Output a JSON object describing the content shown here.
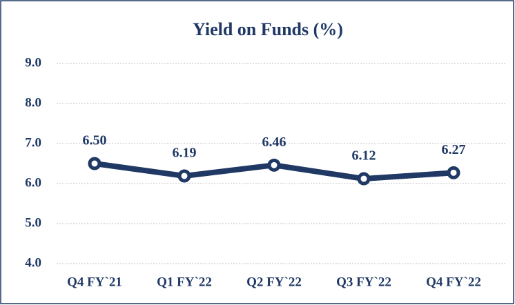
{
  "chart_data": {
    "type": "line",
    "title": "Yield on Funds (%)",
    "categories": [
      "Q4 FY`21",
      "Q1 FY`22",
      "Q2 FY`22",
      "Q3 FY`22",
      "Q4 FY`22"
    ],
    "values": [
      6.5,
      6.19,
      6.46,
      6.12,
      6.27
    ],
    "value_labels": [
      "6.50",
      "6.19",
      "6.46",
      "6.12",
      "6.27"
    ],
    "color": "#1f3864",
    "ylim": [
      4,
      9
    ],
    "yticks": [
      {
        "value": 4,
        "label": "4.0"
      },
      {
        "value": 5,
        "label": "5.0"
      },
      {
        "value": 6,
        "label": "6.0"
      },
      {
        "value": 7,
        "label": "7.0"
      },
      {
        "value": 8,
        "label": "8.0"
      },
      {
        "value": 9,
        "label": "9.0"
      }
    ],
    "grid": true
  }
}
